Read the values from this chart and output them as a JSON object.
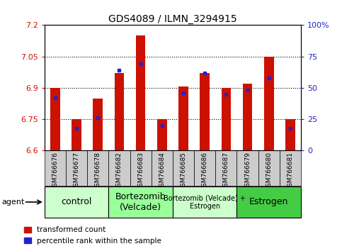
{
  "title": "GDS4089 / ILMN_3294915",
  "samples": [
    "GSM766676",
    "GSM766677",
    "GSM766678",
    "GSM766682",
    "GSM766683",
    "GSM766684",
    "GSM766685",
    "GSM766686",
    "GSM766687",
    "GSM766679",
    "GSM766680",
    "GSM766681"
  ],
  "transformed_counts": [
    6.9,
    6.75,
    6.85,
    6.97,
    7.15,
    6.75,
    6.905,
    6.97,
    6.9,
    6.92,
    7.05,
    6.75
  ],
  "percentile_ranks": [
    42,
    18,
    26,
    64,
    69,
    20,
    46,
    62,
    45,
    48,
    58,
    18
  ],
  "ylim_left": [
    6.6,
    7.2
  ],
  "ylim_right": [
    0,
    100
  ],
  "yticks_left": [
    6.6,
    6.75,
    6.9,
    7.05,
    7.2
  ],
  "yticks_right": [
    0,
    25,
    50,
    75,
    100
  ],
  "ytick_labels_left": [
    "6.6",
    "6.75",
    "6.9",
    "7.05",
    "7.2"
  ],
  "ytick_labels_right": [
    "0",
    "25",
    "50",
    "75",
    "100%"
  ],
  "bar_color": "#cc1100",
  "dot_color": "#2222cc",
  "bar_base": 6.6,
  "groups": [
    {
      "label": "control",
      "start": 0,
      "end": 3,
      "color": "#ccffcc",
      "fontsize": 9
    },
    {
      "label": "Bortezomib\n(Velcade)",
      "start": 3,
      "end": 6,
      "color": "#99ff99",
      "fontsize": 9
    },
    {
      "label": "Bortezomib (Velcade) +\nEstrogen",
      "start": 6,
      "end": 9,
      "color": "#ccffcc",
      "fontsize": 7
    },
    {
      "label": "Estrogen",
      "start": 9,
      "end": 12,
      "color": "#44cc44",
      "fontsize": 9
    }
  ],
  "background_color": "#ffffff",
  "plot_bg_color": "#ffffff",
  "xtick_bg_color": "#cccccc",
  "left_tick_color": "#cc1100",
  "right_tick_color": "#2222cc",
  "bar_width": 0.45,
  "legend_labels": [
    "transformed count",
    "percentile rank within the sample"
  ]
}
